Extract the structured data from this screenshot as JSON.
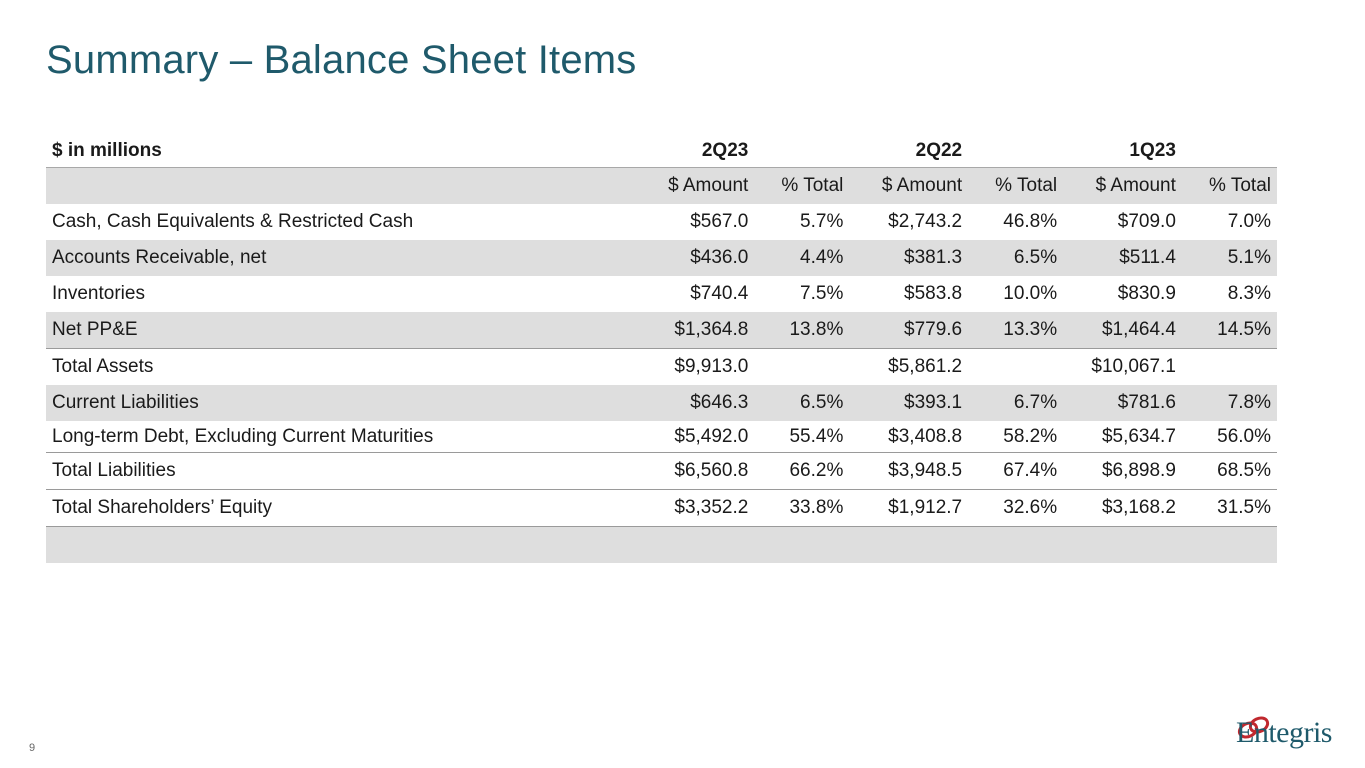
{
  "title": "Summary – Balance Sheet Items",
  "table": {
    "unit_label": "$ in millions",
    "periods": [
      "2Q23",
      "2Q22",
      "1Q23"
    ],
    "subheaders": [
      "$ Amount",
      "% Total",
      "$ Amount",
      "% Total",
      "$ Amount",
      "% Total"
    ],
    "rows": [
      {
        "label": "Cash, Cash Equivalents & Restricted Cash",
        "cells": [
          "$567.0",
          "5.7%",
          "$2,743.2",
          "46.8%",
          "$709.0",
          "7.0%"
        ]
      },
      {
        "label": "Accounts Receivable, net",
        "cells": [
          "$436.0",
          "4.4%",
          "$381.3",
          "6.5%",
          "$511.4",
          "5.1%"
        ]
      },
      {
        "label": "Inventories",
        "cells": [
          "$740.4",
          "7.5%",
          "$583.8",
          "10.0%",
          "$830.9",
          "8.3%"
        ]
      },
      {
        "label": "Net PP&E",
        "cells": [
          "$1,364.8",
          "13.8%",
          "$779.6",
          "13.3%",
          "$1,464.4",
          "14.5%"
        ]
      },
      {
        "label": "Total Assets",
        "cells": [
          "$9,913.0",
          "",
          "$5,861.2",
          "",
          "$10,067.1",
          ""
        ]
      },
      {
        "label": "Current Liabilities",
        "cells": [
          "$646.3",
          "6.5%",
          "$393.1",
          "6.7%",
          "$781.6",
          "7.8%"
        ]
      },
      {
        "label": "Long-term Debt, Excluding Current Maturities",
        "cells": [
          "$5,492.0",
          "55.4%",
          "$3,408.8",
          "58.2%",
          "$5,634.7",
          "56.0%"
        ]
      },
      {
        "label": "Total Liabilities",
        "cells": [
          "$6,560.8",
          "66.2%",
          "$3,948.5",
          "67.4%",
          "$6,898.9",
          "68.5%"
        ]
      },
      {
        "label": "Total Shareholders’ Equity",
        "cells": [
          "$3,352.2",
          "33.8%",
          "$1,912.7",
          "32.6%",
          "$3,168.2",
          "31.5%"
        ]
      }
    ]
  },
  "page_number": "9",
  "logo": {
    "name": "Entegris",
    "accent_color": "#c0282e",
    "text_color": "#1f5a6b"
  }
}
